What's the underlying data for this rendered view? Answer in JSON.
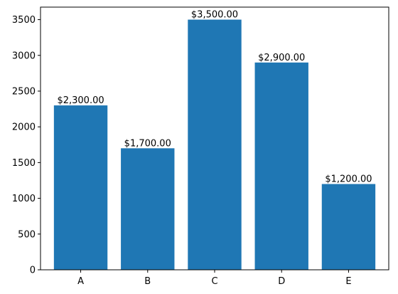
{
  "chart_data": {
    "type": "bar",
    "categories": [
      "A",
      "B",
      "C",
      "D",
      "E"
    ],
    "values": [
      2300,
      1700,
      3500,
      2900,
      1200
    ],
    "data_labels": [
      "$2,300.00",
      "$1,700.00",
      "$3,500.00",
      "$2,900.00",
      "$1,200.00"
    ],
    "title": "",
    "xlabel": "",
    "ylabel": "",
    "ylim": [
      0,
      3675
    ],
    "yticks": [
      0,
      500,
      1000,
      1500,
      2000,
      2500,
      3000,
      3500
    ],
    "ytick_labels": [
      "0",
      "500",
      "1000",
      "1500",
      "2000",
      "2500",
      "3000",
      "3500"
    ],
    "grid": false,
    "bar_color": "#1f77b4"
  }
}
